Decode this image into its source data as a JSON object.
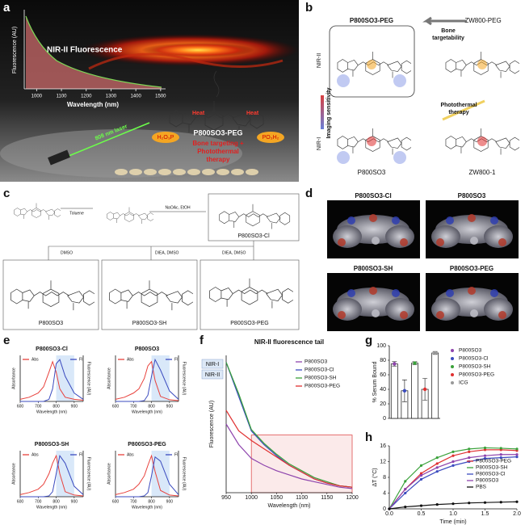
{
  "figure": {
    "a": {
      "label": "a",
      "title": "NIR-II Fluorescence",
      "y_label": "Fluorescence (AU)",
      "x_label": "Wavelength (nm)",
      "xlim": [
        950,
        1520
      ],
      "xticks": [
        1000,
        1100,
        1200,
        1300,
        1400,
        1500
      ],
      "heat": [
        "Heat",
        "Heat"
      ],
      "laser": "808 nm laser",
      "compound": "P800SO3-PEG",
      "groups": [
        "H₂O₃P",
        "PO₃H₂"
      ],
      "note": [
        "Bone targeting +",
        "Photothermal",
        "therapy"
      ]
    },
    "b": {
      "label": "b",
      "compounds": [
        "P800SO3-PEG",
        "ZW800-PEG",
        "P800SO3",
        "ZW800-1"
      ],
      "targetability": [
        "Bone",
        "targetability"
      ],
      "therapy": [
        "Photothermal",
        "therapy"
      ],
      "sensitivity": "Imaging sensitivity",
      "levels": [
        "NIR-II",
        "NIR-I"
      ]
    },
    "c": {
      "label": "c",
      "reagents": [
        "Toluene",
        "NaOAc, EtOH",
        "DMSO",
        "DIEA, DMSO",
        "DIEA, DMSO"
      ],
      "compounds": [
        "P800SO3-Cl",
        "P800SO3",
        "P800SO3-SH",
        "P800SO3-PEG"
      ]
    },
    "d": {
      "label": "d",
      "titles": [
        "P800SO3-Cl",
        "P800SO3",
        "P800SO3-SH",
        "P800SO3-PEG"
      ]
    },
    "e": {
      "label": "e"
    },
    "f": {
      "label": "f"
    },
    "g": {
      "label": "g"
    },
    "h": {
      "label": "h"
    }
  },
  "chart_data": [
    {
      "type": "line",
      "title": "P800SO3-Cl",
      "x_label": "Wavelength (nm)",
      "y_label": "Absorbance",
      "y2_label": "Fluorescence (AU)",
      "x": [
        600,
        650,
        700,
        730,
        760,
        780,
        800,
        820,
        850,
        900,
        950
      ],
      "xlim": [
        600,
        950
      ],
      "xticks": [
        600,
        700,
        800,
        900
      ],
      "ylim": [
        0,
        1.1
      ],
      "y2lim": [
        0,
        1.1
      ],
      "shade": [
        800,
        900
      ],
      "legend": "top",
      "series": [
        {
          "name": "Abs",
          "color": "#e8413c",
          "values": [
            0.05,
            0.1,
            0.2,
            0.35,
            0.7,
            0.95,
            0.7,
            0.3,
            0.1,
            0.05,
            0.03
          ]
        },
        {
          "name": "Fl",
          "color": "#3b4bbf",
          "axis": "y2",
          "values": [
            0,
            0,
            0,
            0,
            0.05,
            0.3,
            0.9,
            1.0,
            0.6,
            0.2,
            0.05
          ]
        }
      ]
    },
    {
      "type": "line",
      "title": "P800SO3",
      "x_label": "Wavelength (nm)",
      "y_label": "Absorbance",
      "y2_label": "Fluorescence (AU)",
      "x": [
        600,
        650,
        700,
        730,
        760,
        780,
        800,
        820,
        850,
        900,
        950
      ],
      "xlim": [
        600,
        950
      ],
      "xticks": [
        600,
        700,
        800,
        900
      ],
      "ylim": [
        0,
        1.1
      ],
      "y2lim": [
        0,
        1.1
      ],
      "shade": [
        800,
        900
      ],
      "legend": "top",
      "series": [
        {
          "name": "Abs",
          "color": "#e8413c",
          "values": [
            0.05,
            0.1,
            0.2,
            0.3,
            0.55,
            0.85,
            0.95,
            0.5,
            0.12,
            0.04,
            0.02
          ]
        },
        {
          "name": "Fl",
          "color": "#3b4bbf",
          "axis": "y2",
          "values": [
            0,
            0,
            0,
            0,
            0.02,
            0.15,
            0.6,
            1.0,
            0.75,
            0.25,
            0.05
          ]
        }
      ]
    },
    {
      "type": "line",
      "title": "P800SO3-SH",
      "x_label": "Wavelength (nm)",
      "y_label": "Absorbance",
      "y2_label": "Fluorescence (AU)",
      "x": [
        600,
        650,
        700,
        730,
        760,
        780,
        800,
        820,
        850,
        900,
        950
      ],
      "xlim": [
        600,
        950
      ],
      "xticks": [
        600,
        700,
        800,
        900
      ],
      "ylim": [
        0,
        1.1
      ],
      "y2lim": [
        0,
        1.1
      ],
      "shade": [
        800,
        900
      ],
      "legend": "top",
      "series": [
        {
          "name": "Abs",
          "color": "#e8413c",
          "values": [
            0.05,
            0.1,
            0.18,
            0.3,
            0.55,
            0.8,
            0.98,
            0.55,
            0.12,
            0.04,
            0.02
          ]
        },
        {
          "name": "Fl",
          "color": "#3b4bbf",
          "axis": "y2",
          "values": [
            0,
            0,
            0,
            0,
            0.02,
            0.12,
            0.55,
            0.98,
            0.8,
            0.25,
            0.05
          ]
        }
      ]
    },
    {
      "type": "line",
      "title": "P800SO3-PEG",
      "x_label": "Wavelength (nm)",
      "y_label": "Absorbance",
      "y2_label": "Fluorescence (AU)",
      "x": [
        600,
        650,
        700,
        730,
        760,
        780,
        800,
        820,
        850,
        900,
        950
      ],
      "xlim": [
        600,
        950
      ],
      "xticks": [
        600,
        700,
        800,
        900
      ],
      "ylim": [
        0,
        1.1
      ],
      "y2lim": [
        0,
        1.1
      ],
      "shade": [
        800,
        900
      ],
      "legend": "top",
      "series": [
        {
          "name": "Abs",
          "color": "#e8413c",
          "values": [
            0.05,
            0.1,
            0.18,
            0.3,
            0.5,
            0.75,
            0.98,
            0.6,
            0.15,
            0.04,
            0.02
          ]
        },
        {
          "name": "Fl",
          "color": "#3b4bbf",
          "axis": "y2",
          "values": [
            0,
            0,
            0,
            0,
            0.02,
            0.1,
            0.5,
            0.95,
            0.85,
            0.3,
            0.05
          ]
        }
      ]
    },
    {
      "type": "line",
      "title": "NIR-II fluorescence tail",
      "x_label": "Wavelength (nm)",
      "y_label": "Fluorescence (AU)",
      "bands": [
        "NIR-I",
        "NIR-II"
      ],
      "x": [
        950,
        975,
        1000,
        1025,
        1050,
        1075,
        1100,
        1125,
        1150,
        1175,
        1200
      ],
      "xlim": [
        950,
        1200
      ],
      "xticks": [
        950,
        1000,
        1050,
        1100,
        1150,
        1200
      ],
      "ylim": [
        0,
        1
      ],
      "highlight": {
        "x": [
          1000,
          1200
        ],
        "y": [
          0,
          0.42
        ]
      },
      "legend": "upper right",
      "series": [
        {
          "name": "P800SO3",
          "color": "#8e44ad",
          "values": [
            0.5,
            0.35,
            0.25,
            0.2,
            0.16,
            0.13,
            0.1,
            0.08,
            0.06,
            0.04,
            0.03
          ]
        },
        {
          "name": "P800SO3-Cl",
          "color": "#3b4bbf",
          "values": [
            0.95,
            0.7,
            0.45,
            0.35,
            0.27,
            0.2,
            0.15,
            0.1,
            0.07,
            0.05,
            0.04
          ]
        },
        {
          "name": "P800SO3-SH",
          "color": "#3aa13a",
          "values": [
            0.95,
            0.72,
            0.46,
            0.36,
            0.28,
            0.21,
            0.16,
            0.11,
            0.08,
            0.05,
            0.04
          ]
        },
        {
          "name": "P800SO3-PEG",
          "color": "#e03030",
          "values": [
            0.6,
            0.45,
            0.38,
            0.32,
            0.26,
            0.2,
            0.15,
            0.1,
            0.07,
            0.05,
            0.04
          ]
        }
      ]
    },
    {
      "type": "bar",
      "y_label": "% Serum Bound",
      "legend": "right",
      "categories": [
        "P800SO3",
        "P800SO3-Cl",
        "P800SO3-SH",
        "P800SO3-PEG",
        "ICG"
      ],
      "values": [
        75,
        38,
        76,
        40,
        90
      ],
      "errors": [
        3,
        15,
        2,
        15,
        2
      ],
      "colors": [
        "#8e44ad",
        "#3b4bbf",
        "#3aa13a",
        "#e03030",
        "#999999"
      ],
      "ylim": [
        0,
        100
      ],
      "yticks": [
        0,
        20,
        40,
        60,
        80,
        100
      ]
    },
    {
      "type": "line",
      "x_label": "Time (min)",
      "y_label": "ΔT (°C)",
      "markers": true,
      "legend": "center right",
      "x": [
        0,
        0.25,
        0.5,
        0.75,
        1,
        1.25,
        1.5,
        1.75,
        2
      ],
      "xlim": [
        0,
        2
      ],
      "xticks": [
        {
          "value": 0,
          "label": "0.0"
        },
        {
          "value": 0.5,
          "label": "0.5"
        },
        {
          "value": 1,
          "label": "1.0"
        },
        {
          "value": 1.5,
          "label": "1.5"
        },
        {
          "value": 2,
          "label": "2.0"
        }
      ],
      "ylim": [
        0,
        16
      ],
      "yticks": [
        0,
        4,
        8,
        12,
        16
      ],
      "series": [
        {
          "name": "P800SO3-PEG",
          "color": "#e03030",
          "values": [
            0,
            5,
            9,
            11.5,
            13.5,
            14.5,
            15,
            15,
            14.8
          ]
        },
        {
          "name": "P800SO3-SH",
          "color": "#3aa13a",
          "values": [
            0,
            7,
            11,
            13,
            14.5,
            15.2,
            15.5,
            15.4,
            15.2
          ]
        },
        {
          "name": "P800SO3-Cl",
          "color": "#3b4bbf",
          "values": [
            0,
            4,
            7.5,
            9.5,
            11,
            12,
            12.8,
            13,
            13.2
          ]
        },
        {
          "name": "P800SO3",
          "color": "#8e44ad",
          "values": [
            0,
            5,
            8.5,
            10.5,
            12,
            13,
            13.5,
            13.8,
            13.8
          ]
        },
        {
          "name": "PBS",
          "color": "#111111",
          "values": [
            0,
            0.5,
            0.8,
            1.1,
            1.3,
            1.5,
            1.6,
            1.7,
            1.8
          ]
        }
      ]
    }
  ]
}
